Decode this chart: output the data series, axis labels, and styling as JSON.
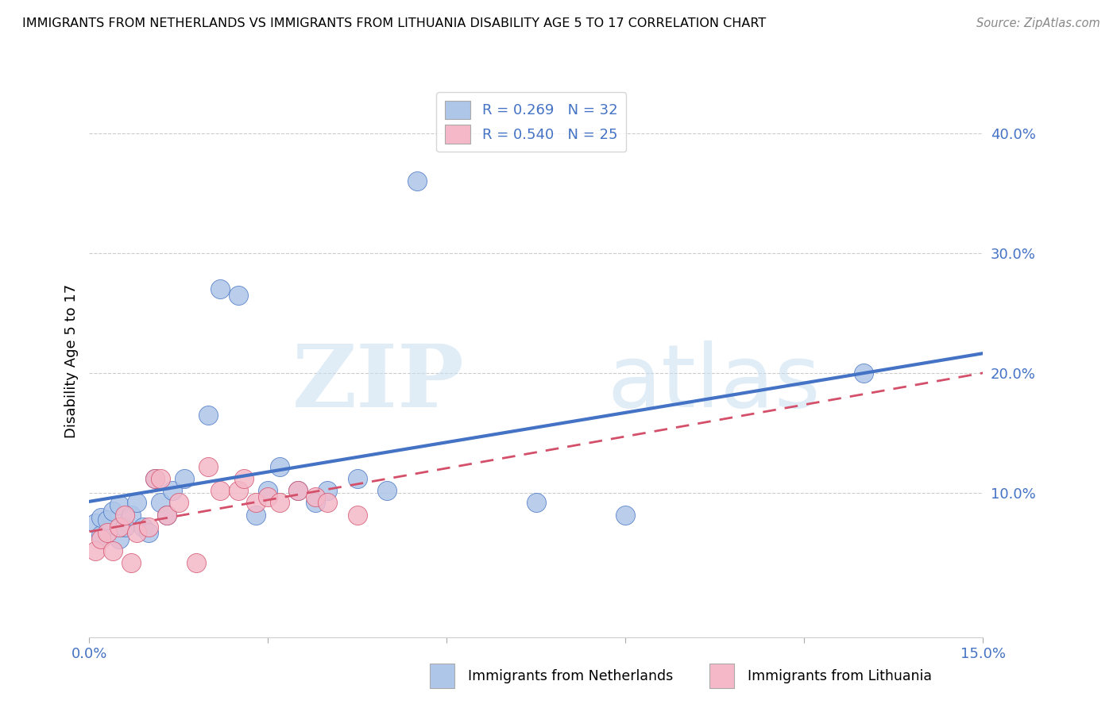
{
  "title": "IMMIGRANTS FROM NETHERLANDS VS IMMIGRANTS FROM LITHUANIA DISABILITY AGE 5 TO 17 CORRELATION CHART",
  "source": "Source: ZipAtlas.com",
  "ylabel_label": "Disability Age 5 to 17",
  "xlim": [
    0.0,
    0.15
  ],
  "ylim": [
    -0.02,
    0.44
  ],
  "xticks": [
    0.0,
    0.03,
    0.06,
    0.09,
    0.12,
    0.15
  ],
  "xtick_labels": [
    "0.0%",
    "",
    "",
    "",
    "",
    "15.0%"
  ],
  "ytick_labels_right": [
    "",
    "10.0%",
    "20.0%",
    "30.0%",
    "40.0%"
  ],
  "ytick_positions_right": [
    0.0,
    0.1,
    0.2,
    0.3,
    0.4
  ],
  "legend_r1": "0.269",
  "legend_n1": "32",
  "legend_r2": "0.540",
  "legend_n2": "25",
  "color_netherlands": "#aec6e8",
  "color_lithuania": "#f4b8c8",
  "color_line_netherlands": "#4472c4",
  "color_line_lithuania": "#d4506a",
  "color_text_blue": "#4472c4",
  "color_grid": "#cccccc",
  "background_color": "#ffffff",
  "netherlands_x": [
    0.001,
    0.002,
    0.002,
    0.003,
    0.004,
    0.005,
    0.005,
    0.006,
    0.007,
    0.008,
    0.009,
    0.01,
    0.011,
    0.012,
    0.013,
    0.014,
    0.016,
    0.02,
    0.022,
    0.025,
    0.028,
    0.03,
    0.032,
    0.035,
    0.038,
    0.04,
    0.045,
    0.05,
    0.055,
    0.075,
    0.09,
    0.13
  ],
  "netherlands_y": [
    0.075,
    0.065,
    0.08,
    0.078,
    0.085,
    0.09,
    0.062,
    0.072,
    0.082,
    0.092,
    0.072,
    0.067,
    0.112,
    0.092,
    0.082,
    0.102,
    0.112,
    0.165,
    0.27,
    0.265,
    0.082,
    0.102,
    0.122,
    0.102,
    0.092,
    0.102,
    0.112,
    0.102,
    0.36,
    0.092,
    0.082,
    0.2
  ],
  "lithuania_x": [
    0.001,
    0.002,
    0.003,
    0.004,
    0.005,
    0.006,
    0.007,
    0.008,
    0.01,
    0.011,
    0.012,
    0.013,
    0.015,
    0.018,
    0.02,
    0.022,
    0.025,
    0.026,
    0.028,
    0.03,
    0.032,
    0.035,
    0.038,
    0.04,
    0.045
  ],
  "lithuania_y": [
    0.052,
    0.062,
    0.067,
    0.052,
    0.072,
    0.082,
    0.042,
    0.067,
    0.072,
    0.112,
    0.112,
    0.082,
    0.092,
    0.042,
    0.122,
    0.102,
    0.102,
    0.112,
    0.092,
    0.097,
    0.092,
    0.102,
    0.097,
    0.092,
    0.082
  ],
  "watermark_zip": "ZIP",
  "watermark_atlas": "atlas"
}
